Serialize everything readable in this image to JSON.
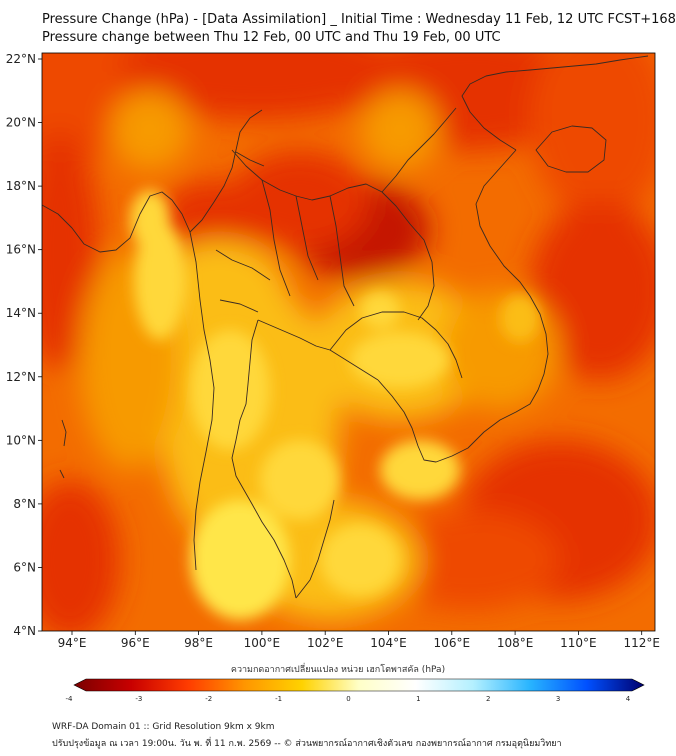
{
  "header": {
    "title_line1": "Pressure Change (hPa) - [Data Assimilation] _ Initial Time : Wednesday 11 Feb, 12 UTC FCST+168",
    "title_line2": "Pressure change between Thu 12 Feb, 00 UTC and Thu 19 Feb, 00 UTC"
  },
  "map": {
    "lat_labels": [
      "22°N",
      "20°N",
      "18°N",
      "16°N",
      "14°N",
      "12°N",
      "10°N",
      "8°N",
      "6°N",
      "4°N"
    ],
    "lon_labels": [
      "94°E",
      "96°E",
      "98°E",
      "100°E",
      "102°E",
      "104°E",
      "106°E",
      "108°E",
      "110°E",
      "112°E"
    ],
    "colors": {
      "deep_red": "#c41400",
      "red": "#e53000",
      "red_orange": "#ee4a00",
      "orange": "#f36c00",
      "orange_light": "#f79a00",
      "amber": "#fbbd14",
      "yellow": "#ffd83a",
      "yellow_bright": "#ffe648"
    }
  },
  "colorbar": {
    "title": "ความกดอากาศเปลี่ยนแปลง หน่วย เฮกโตพาสคัล (hPa)",
    "tick_labels": [
      "-4",
      "-3",
      "-2",
      "-1",
      "0",
      "1",
      "2",
      "3",
      "4"
    ],
    "stops": [
      "#7a0000",
      "#c80000",
      "#ff3c00",
      "#ff9600",
      "#ffd200",
      "#ffffc8",
      "#ffffff",
      "#b4f0ff",
      "#28b4ff",
      "#0050ff",
      "#00006e"
    ]
  },
  "footer": {
    "line1": "WRF-DA Domain 01 :: Grid Resolution 9km x 9km",
    "line2": "ปรับปรุงข้อมูล ณ เวลา 19:00น. วัน พ. ที่ 11 ก.พ. 2569 -- © ส่วนพยากรณ์อากาศเชิงตัวเลข กองพยากรณ์อากาศ กรมอุตุนิยมวิทยา"
  }
}
